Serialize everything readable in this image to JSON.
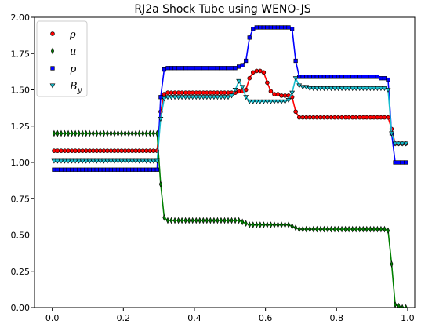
{
  "chart_data": {
    "type": "scatter",
    "title": "RJ2a Shock Tube using WENO-JS",
    "xlabel": "",
    "ylabel": "",
    "xlim": [
      -0.05,
      1.02
    ],
    "ylim": [
      0.0,
      2.0
    ],
    "x_ticks": [
      0.0,
      0.2,
      0.4,
      0.6,
      0.8,
      1.0
    ],
    "x_tick_labels": [
      "0.0",
      "0.2",
      "0.4",
      "0.6",
      "0.8",
      "1.0"
    ],
    "y_ticks": [
      0.0,
      0.25,
      0.5,
      0.75,
      1.0,
      1.25,
      1.5,
      1.75,
      2.0
    ],
    "y_tick_labels": [
      "0.00",
      "0.25",
      "0.50",
      "0.75",
      "1.00",
      "1.25",
      "1.50",
      "1.75",
      "2.00"
    ],
    "grid": false,
    "legend_position": "upper-left",
    "n_points": 100,
    "x_start": 0.005,
    "x_step": 0.01,
    "series": [
      {
        "name": "ρ",
        "legend_base": "ρ",
        "legend_sub": "",
        "marker": "circle",
        "color": "#ff0000",
        "line_color": "#ff0000",
        "values": [
          1.08,
          1.08,
          1.08,
          1.08,
          1.08,
          1.08,
          1.08,
          1.08,
          1.08,
          1.08,
          1.08,
          1.08,
          1.08,
          1.08,
          1.08,
          1.08,
          1.08,
          1.08,
          1.08,
          1.08,
          1.08,
          1.08,
          1.08,
          1.08,
          1.08,
          1.08,
          1.08,
          1.08,
          1.08,
          1.08,
          1.35,
          1.47,
          1.48,
          1.48,
          1.48,
          1.48,
          1.48,
          1.48,
          1.48,
          1.48,
          1.48,
          1.48,
          1.48,
          1.48,
          1.48,
          1.48,
          1.48,
          1.48,
          1.48,
          1.48,
          1.48,
          1.48,
          1.49,
          1.49,
          1.5,
          1.58,
          1.62,
          1.63,
          1.63,
          1.62,
          1.55,
          1.49,
          1.47,
          1.47,
          1.46,
          1.46,
          1.46,
          1.45,
          1.35,
          1.31,
          1.31,
          1.31,
          1.31,
          1.31,
          1.31,
          1.31,
          1.31,
          1.31,
          1.31,
          1.31,
          1.31,
          1.31,
          1.31,
          1.31,
          1.31,
          1.31,
          1.31,
          1.31,
          1.31,
          1.31,
          1.31,
          1.31,
          1.31,
          1.31,
          1.31,
          1.23,
          1.13,
          1.13,
          1.13,
          1.13
        ]
      },
      {
        "name": "u",
        "legend_base": "u",
        "legend_sub": "",
        "marker": "thin_diamond",
        "color": "#008000",
        "line_color": "#008000",
        "values": [
          1.2,
          1.2,
          1.2,
          1.2,
          1.2,
          1.2,
          1.2,
          1.2,
          1.2,
          1.2,
          1.2,
          1.2,
          1.2,
          1.2,
          1.2,
          1.2,
          1.2,
          1.2,
          1.2,
          1.2,
          1.2,
          1.2,
          1.2,
          1.2,
          1.2,
          1.2,
          1.2,
          1.2,
          1.2,
          1.2,
          0.85,
          0.62,
          0.6,
          0.6,
          0.6,
          0.6,
          0.6,
          0.6,
          0.6,
          0.6,
          0.6,
          0.6,
          0.6,
          0.6,
          0.6,
          0.6,
          0.6,
          0.6,
          0.6,
          0.6,
          0.6,
          0.6,
          0.6,
          0.59,
          0.58,
          0.57,
          0.57,
          0.57,
          0.57,
          0.57,
          0.57,
          0.57,
          0.57,
          0.57,
          0.57,
          0.57,
          0.57,
          0.56,
          0.55,
          0.54,
          0.54,
          0.54,
          0.54,
          0.54,
          0.54,
          0.54,
          0.54,
          0.54,
          0.54,
          0.54,
          0.54,
          0.54,
          0.54,
          0.54,
          0.54,
          0.54,
          0.54,
          0.54,
          0.54,
          0.54,
          0.54,
          0.54,
          0.54,
          0.54,
          0.53,
          0.3,
          0.02,
          0.01,
          0.0,
          0.0
        ]
      },
      {
        "name": "p",
        "legend_base": "p",
        "legend_sub": "",
        "marker": "square",
        "color": "#0000ff",
        "line_color": "#0000ff",
        "values": [
          0.95,
          0.95,
          0.95,
          0.95,
          0.95,
          0.95,
          0.95,
          0.95,
          0.95,
          0.95,
          0.95,
          0.95,
          0.95,
          0.95,
          0.95,
          0.95,
          0.95,
          0.95,
          0.95,
          0.95,
          0.95,
          0.95,
          0.95,
          0.95,
          0.95,
          0.95,
          0.95,
          0.95,
          0.95,
          0.95,
          1.45,
          1.64,
          1.65,
          1.65,
          1.65,
          1.65,
          1.65,
          1.65,
          1.65,
          1.65,
          1.65,
          1.65,
          1.65,
          1.65,
          1.65,
          1.65,
          1.65,
          1.65,
          1.65,
          1.65,
          1.65,
          1.65,
          1.66,
          1.67,
          1.7,
          1.86,
          1.92,
          1.93,
          1.93,
          1.93,
          1.93,
          1.93,
          1.93,
          1.93,
          1.93,
          1.93,
          1.93,
          1.92,
          1.7,
          1.59,
          1.59,
          1.59,
          1.59,
          1.59,
          1.59,
          1.59,
          1.59,
          1.59,
          1.59,
          1.59,
          1.59,
          1.59,
          1.59,
          1.59,
          1.59,
          1.59,
          1.59,
          1.59,
          1.59,
          1.59,
          1.59,
          1.59,
          1.58,
          1.58,
          1.57,
          1.2,
          1.0,
          1.0,
          1.0,
          1.0
        ]
      },
      {
        "name": "By",
        "legend_base": "B",
        "legend_sub": "y",
        "marker": "triangle_down",
        "color": "#17becf",
        "line_color": "#17becf",
        "values": [
          1.01,
          1.01,
          1.01,
          1.01,
          1.01,
          1.01,
          1.01,
          1.01,
          1.01,
          1.01,
          1.01,
          1.01,
          1.01,
          1.01,
          1.01,
          1.01,
          1.01,
          1.01,
          1.01,
          1.01,
          1.01,
          1.01,
          1.01,
          1.01,
          1.01,
          1.01,
          1.01,
          1.01,
          1.01,
          1.01,
          1.3,
          1.44,
          1.45,
          1.45,
          1.45,
          1.45,
          1.45,
          1.45,
          1.45,
          1.45,
          1.45,
          1.45,
          1.45,
          1.45,
          1.45,
          1.45,
          1.45,
          1.45,
          1.45,
          1.45,
          1.46,
          1.5,
          1.56,
          1.52,
          1.45,
          1.42,
          1.42,
          1.42,
          1.42,
          1.42,
          1.42,
          1.42,
          1.42,
          1.42,
          1.42,
          1.42,
          1.43,
          1.48,
          1.58,
          1.53,
          1.52,
          1.52,
          1.51,
          1.51,
          1.51,
          1.51,
          1.51,
          1.51,
          1.51,
          1.51,
          1.51,
          1.51,
          1.51,
          1.51,
          1.51,
          1.51,
          1.51,
          1.51,
          1.51,
          1.51,
          1.51,
          1.51,
          1.51,
          1.51,
          1.5,
          1.2,
          1.13,
          1.13,
          1.13,
          1.13
        ]
      }
    ]
  }
}
